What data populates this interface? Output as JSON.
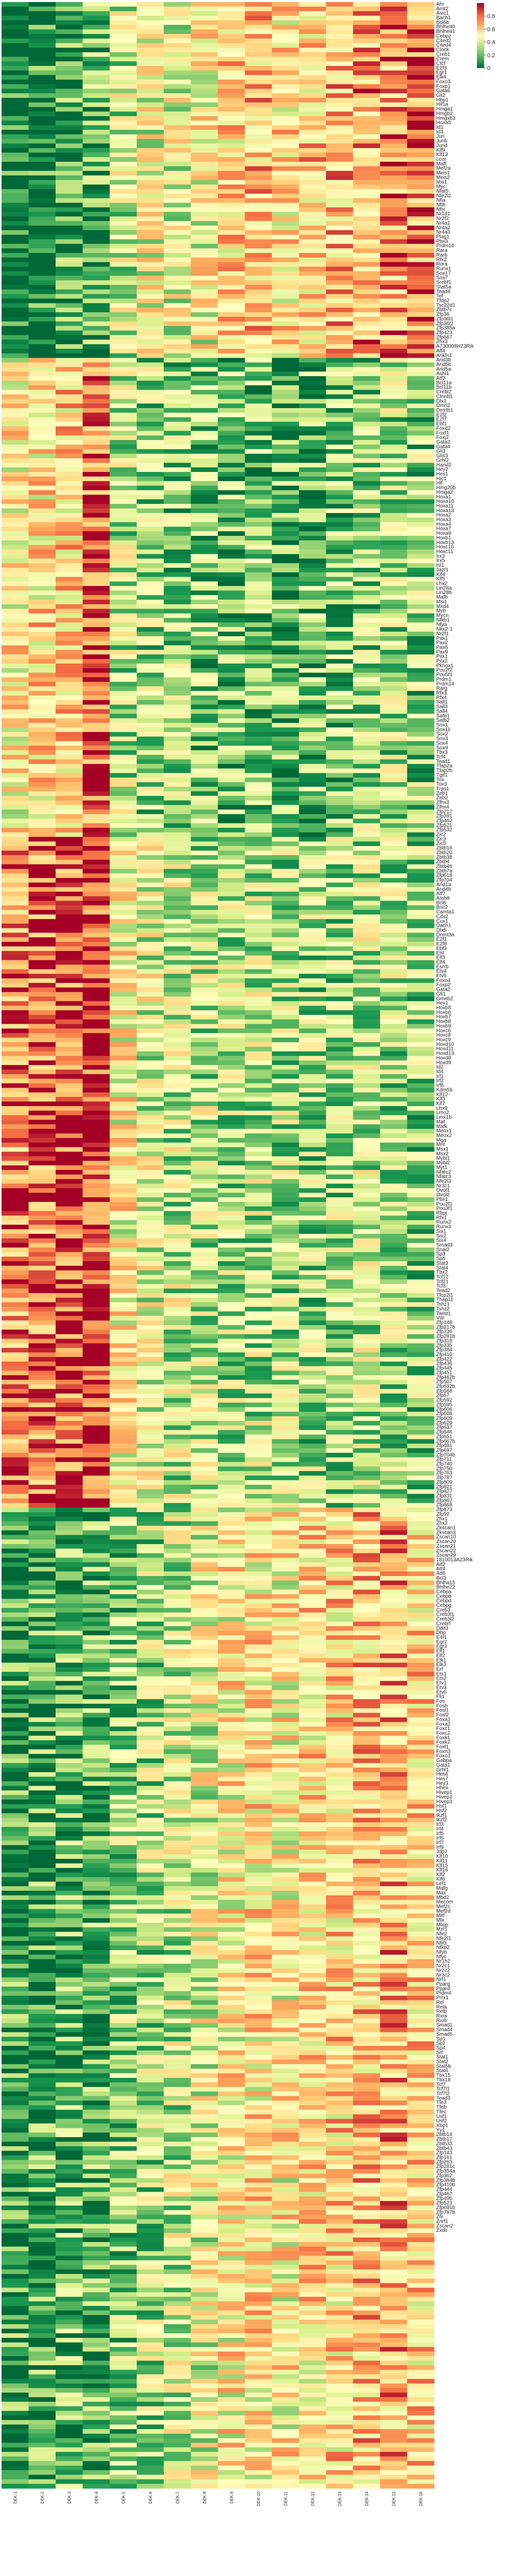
{
  "chart_data": {
    "type": "heatmap",
    "title": "",
    "xlabel": "",
    "ylabel": "",
    "colormap": "RdYlGn_r",
    "colors": {
      "low": "#006837",
      "mid": "#ffffbf",
      "high": "#a50026"
    },
    "colorbar": {
      "range": [
        0,
        1
      ],
      "ticks": [
        "0",
        "0.2",
        "0.4",
        "0.6",
        "0.8"
      ]
    },
    "columns": [
      "DEK-1",
      "DEK-2",
      "DEK-3",
      "DEK-4",
      "DEK-5",
      "DEK-6",
      "DEK-7",
      "DEK-8",
      "DEK-9",
      "DEK-10",
      "DEK-11",
      "DEK-12",
      "DEK-13",
      "DEK-14",
      "DEK-15",
      "DEK-16"
    ],
    "row_labels": [
      "Ahr",
      "Arnt2",
      "Asic1",
      "Bach1",
      "Bcl6b",
      "Bhlhe40",
      "Bhlhe41",
      "Cebpz",
      "Cited2",
      "Cited4",
      "Clock",
      "Creb1",
      "Crem",
      "Ctcf",
      "E2f3",
      "Egr1",
      "Elk4",
      "Foxo3",
      "Foxp1",
      "Gata6",
      "Gli2",
      "Hbp1",
      "Hif1a",
      "Hmga1",
      "Hmgb2",
      "Hmgxb3",
      "Hoxa5",
      "Id1",
      "Id3",
      "Jun",
      "Junb",
      "Jund",
      "Klf9",
      "Klf13",
      "Lcor",
      "Maff",
      "Mef2a",
      "Meis1",
      "Meis2",
      "Mxi1",
      "Myc",
      "Nfat5",
      "Nfe2l2",
      "Nfia",
      "Nfib",
      "Nfix",
      "Nr1d1",
      "Nr2f2",
      "Nr4a1",
      "Nr4a2",
      "Nr4a3",
      "Plag1",
      "Pbx3",
      "Prdm16",
      "Rara",
      "Rarb",
      "Rfx2",
      "Rora",
      "Runx1",
      "Sox17",
      "Sox7",
      "Srebf1",
      "Stat5a",
      "Tead4",
      "Tef",
      "Tfdp2",
      "Tsc22d1",
      "Zbtb7c",
      "Zfp36",
      "Zfp36l1",
      "Zfp36l2",
      "Zfp385a",
      "Zfp423",
      "Zfp667",
      "Zhx3",
      "A730008H23Rik",
      "Aff4",
      "Ankfn1",
      "Arid3b",
      "Arid5b",
      "Arid5a",
      "Ashl1",
      "Atf3",
      "Bcl11a",
      "Bcl11b",
      "Crebl2",
      "Ctnnb1",
      "Dlx2",
      "Dmrt2",
      "Dmrtb1",
      "E2f2",
      "E2f7",
      "Ebf1",
      "Foxd2",
      "Foxf1",
      "Foxj2",
      "Gata3",
      "Gata4",
      "Gli3",
      "Glis3",
      "Grhl2",
      "Hand2",
      "Hey2",
      "Hes1",
      "Hic1",
      "Hlf",
      "Hmg20b",
      "Hmga2",
      "Hoxa1",
      "Hoxa10",
      "Hoxa11",
      "Hoxa13",
      "Hoxa2",
      "Hoxa3",
      "Hoxa4",
      "Hoxa7",
      "Hoxa9",
      "Hoxb1",
      "Hoxb13",
      "Hoxc10",
      "Hoxc11",
      "Irx3",
      "Irx5",
      "Isl1",
      "Jazf1",
      "Klf4",
      "Klf5",
      "Lhx2",
      "Lin28a",
      "Lin28b",
      "Mafb",
      "Msi1",
      "Mxd4",
      "Myb",
      "Mycn",
      "Nfkb1",
      "Nfya",
      "Nkx2-1",
      "Nr2f1",
      "Pax1",
      "Pax2",
      "Pax6",
      "Pax9",
      "Pitx1",
      "Pitx2",
      "Pknox1",
      "Pou2f2",
      "Pou5f1",
      "Prdm1",
      "Prdm14",
      "Rarg",
      "Rfx3",
      "Rfx4",
      "Sall1",
      "Sall3",
      "Sall4",
      "Satb1",
      "Satb2",
      "Sox1",
      "Sox11",
      "Sox2",
      "Sox3",
      "Sox4",
      "Sox9",
      "Tbx3",
      "Tcf4",
      "Tead1",
      "Tfap2a",
      "Tfap2b",
      "Tgif1",
      "Tox",
      "Tox3",
      "Trps1",
      "Zeb1",
      "Zeb2",
      "Zfhx3",
      "Zfhx4",
      "Zfp217",
      "Zfp281",
      "Zfp462",
      "Zfp521",
      "Zfp532",
      "Zic2",
      "Zic3",
      "Zic5",
      "Zbtb16",
      "Zbtb20",
      "Zbtb38",
      "Zbtb4",
      "Zbtb46",
      "Zbtb7a",
      "Zfp618",
      "Zfp704",
      "Arid1a",
      "Arid4b",
      "Atf7",
      "Atoh8",
      "Bcl6",
      "Bnc2",
      "Camta1",
      "Cdx2",
      "Cux1",
      "Dach1",
      "Dlx5",
      "Dnmt3a",
      "E2f1",
      "E2f8",
      "Ebf3",
      "Ehf",
      "Elf3",
      "Elf4",
      "Esrrb",
      "Etv4",
      "Etv5",
      "Foxo4",
      "Foxp2",
      "Gata2",
      "Gfi1",
      "Gmeb2",
      "Hey1",
      "Hoxb5",
      "Hoxb6",
      "Hoxb7",
      "Hoxb8",
      "Hoxb9",
      "Hoxc6",
      "Hoxc8",
      "Hoxc9",
      "Hoxd10",
      "Hoxd11",
      "Hoxd13",
      "Hoxd8",
      "Hoxd9",
      "Id2",
      "Id4",
      "Irf1",
      "Irf2",
      "Irf8",
      "Kdm5b",
      "Klf12",
      "Klf3",
      "Klf7",
      "Lhx9",
      "Lmo2",
      "Lmx1b",
      "Maf",
      "Mafk",
      "Meox1",
      "Meox2",
      "Mga",
      "Mnt",
      "Msx1",
      "Msx2",
      "Mybl1",
      "Mybl2",
      "Myt1",
      "Nfatc2",
      "Nfatc3",
      "Nfe2l3",
      "Nr3c1",
      "Ovol1",
      "Ovol2",
      "Pbx1",
      "Pou2f1",
      "Pou3f1",
      "Rbpj",
      "Rfx1",
      "Runx2",
      "Runx3",
      "Six1",
      "Six2",
      "Six4",
      "Smad3",
      "Snai2",
      "Sp3",
      "Sp5",
      "Stat3",
      "Stat4",
      "Tbx2",
      "Tcf12",
      "Tcf21",
      "Tcf3",
      "Tead2",
      "Tfcp2l1",
      "Thap11",
      "Tshz1",
      "Tshz2",
      "Twist1",
      "Vdr",
      "Zfp148",
      "Zfp217b",
      "Zfp236",
      "Zfp281b",
      "Zfp318",
      "Zfp335",
      "Zfp384",
      "Zfp410",
      "Zfp422",
      "Zfp436",
      "Zfp445",
      "Zfp451",
      "Zfp462b",
      "Zfp507",
      "Zfp532b",
      "Zfp568",
      "Zfp57",
      "Zfp592",
      "Zfp595",
      "Zfp606",
      "Zfp608",
      "Zfp609",
      "Zfp629",
      "Zfp637",
      "Zfp646",
      "Zfp651",
      "Zfp667b",
      "Zfp691",
      "Zfp697",
      "Zfp704b",
      "Zfp711",
      "Zfp740",
      "Zfp750",
      "Zfp763",
      "Zfp787",
      "Zfp809",
      "Zfp821",
      "Zfp827",
      "Zfp831",
      "Zfp862",
      "Zfp868",
      "Zfp873",
      "Zfp92",
      "Zhx1",
      "Zhx2",
      "Zkscan1",
      "Zkscan3",
      "Zscan10",
      "Zscan20",
      "Zscan21",
      "Zscan22",
      "Zscan29",
      "1810013A23Rik",
      "Atf2",
      "Atf4",
      "Atf6",
      "Bcl3",
      "Bhlha15",
      "Bhlhe22",
      "Cebpa",
      "Cebpb",
      "Cebpd",
      "Cebpg",
      "Creb3",
      "Creb3l1",
      "Creb3l2",
      "Crebrf",
      "Ddit3",
      "Dbp",
      "E4f1",
      "Egr2",
      "Egr3",
      "Elf1",
      "Elf2",
      "Elk1",
      "Elk3",
      "Erf",
      "Ets1",
      "Ets2",
      "Etv1",
      "Etv3",
      "Etv6",
      "Fli1",
      "Fos",
      "Fosb",
      "Fosl1",
      "Fosl2",
      "Foxa1",
      "Foxa2",
      "Foxc1",
      "Foxc2",
      "Foxk1",
      "Foxk2",
      "Foxl1",
      "Foxn3",
      "Foxo1",
      "Gabpa",
      "Gata1",
      "Grhl1",
      "Hes6",
      "Hes7",
      "Hey3",
      "Hhex",
      "Hivep1",
      "Hivep2",
      "Hivep3",
      "Hsf1",
      "Hsf2",
      "Ikzf1",
      "Ikzf2",
      "Irf3",
      "Irf4",
      "Irf5",
      "Irf6",
      "Irf7",
      "Irf9",
      "Jdp2",
      "Klf10",
      "Klf11",
      "Klf15",
      "Klf16",
      "Klf2",
      "Klf6",
      "Lef1",
      "Mafg",
      "Max",
      "Mbd2",
      "Mecom",
      "Mef2c",
      "Mef2d",
      "Mitf",
      "Mlx",
      "Mlxip",
      "Mzf1",
      "Nfe2",
      "Nfe2l1",
      "Nfil3",
      "Nfkb2",
      "Nfyb",
      "Nfyc",
      "Nr1h2",
      "Nr2c1",
      "Nr2c2",
      "Nr3c2",
      "Nrf1",
      "Pparg",
      "Ppard",
      "Prdm4",
      "Prrx1",
      "Rel",
      "Rela",
      "Relb",
      "Rxra",
      "Rxrb",
      "Smad1",
      "Smad4",
      "Smad5",
      "Sp1",
      "Sp2",
      "Sp4",
      "Srf",
      "Stat1",
      "Stat2",
      "Stat5b",
      "Stat6",
      "Tbx15",
      "Tbx18",
      "Tcf7",
      "Tcf7l1",
      "Tcf7l2",
      "Tead3",
      "Tfe3",
      "Tfeb",
      "Tfec",
      "Usf1",
      "Usf2",
      "Xbp1",
      "Yy1",
      "Zbtb14",
      "Zbtb17",
      "Zbtb33",
      "Zbtb43",
      "Zfp143",
      "Zfp161",
      "Zfp263",
      "Zfp281c",
      "Zfp354a",
      "Zfp362",
      "Zfp384b",
      "Zfp410b",
      "Zfp444",
      "Zfp467",
      "Zfp496",
      "Zfp523",
      "Zfp691b",
      "Zfp787b",
      "Zfx",
      "Znrf1",
      "Zscan2",
      "Zxdc"
    ],
    "row_groups": [
      {
        "name": "A",
        "count": 78,
        "pattern": [
          0.05,
          0.08,
          0.12,
          0.18,
          0.4,
          0.5,
          0.48,
          0.52,
          0.62,
          0.66,
          0.6,
          0.64,
          0.68,
          0.74,
          0.78,
          0.82
        ]
      },
      {
        "name": "B",
        "count": 105,
        "pattern": [
          0.55,
          0.6,
          0.62,
          0.88,
          0.38,
          0.33,
          0.3,
          0.28,
          0.22,
          0.25,
          0.2,
          0.22,
          0.26,
          0.3,
          0.34,
          0.3
        ]
      },
      {
        "name": "C",
        "count": 147,
        "pattern": [
          0.82,
          0.85,
          0.9,
          0.95,
          0.55,
          0.45,
          0.4,
          0.38,
          0.36,
          0.38,
          0.35,
          0.33,
          0.34,
          0.38,
          0.35,
          0.3
        ]
      },
      {
        "name": "D",
        "count": 215,
        "pattern": [
          0.12,
          0.15,
          0.2,
          0.18,
          0.3,
          0.35,
          0.4,
          0.48,
          0.55,
          0.58,
          0.55,
          0.6,
          0.62,
          0.66,
          0.7,
          0.62
        ]
      }
    ]
  }
}
